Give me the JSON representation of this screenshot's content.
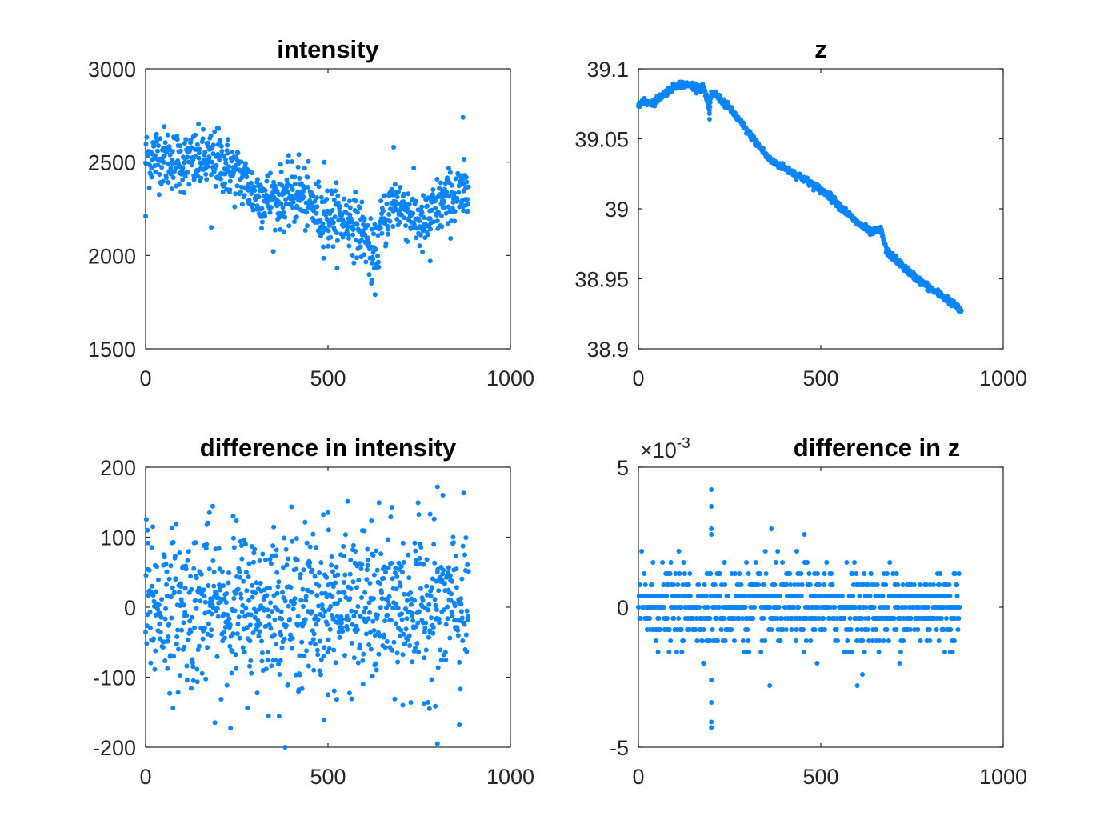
{
  "chart_data": [
    {
      "type": "scatter",
      "title": "intensity",
      "xlim": [
        0,
        1000
      ],
      "ylim": [
        1500,
        3000
      ],
      "xticks": [
        0,
        500,
        1000
      ],
      "yticks": [
        1500,
        2000,
        2500,
        3000
      ],
      "xtick_labels": [
        "0",
        "500",
        "1000"
      ],
      "ytick_labels": [
        "1500",
        "2000",
        "2500",
        "3000"
      ],
      "grid": false,
      "color": "#0a84ff",
      "x_range": [
        0,
        885
      ],
      "trend": [
        [
          0,
          2520
        ],
        [
          30,
          2540
        ],
        [
          100,
          2500
        ],
        [
          200,
          2510
        ],
        [
          260,
          2420
        ],
        [
          300,
          2330
        ],
        [
          350,
          2300
        ],
        [
          420,
          2330
        ],
        [
          480,
          2220
        ],
        [
          560,
          2190
        ],
        [
          600,
          2120
        ],
        [
          625,
          1960
        ],
        [
          650,
          2180
        ],
        [
          680,
          2290
        ],
        [
          720,
          2240
        ],
        [
          760,
          2150
        ],
        [
          800,
          2260
        ],
        [
          850,
          2320
        ],
        [
          885,
          2320
        ]
      ],
      "scatter_spread": 80,
      "outliers": [
        [
          0,
          2210
        ],
        [
          30,
          2650
        ],
        [
          180,
          2150
        ],
        [
          200,
          2680
        ],
        [
          420,
          2540
        ],
        [
          490,
          2500
        ],
        [
          500,
          2050
        ],
        [
          620,
          1870
        ],
        [
          680,
          2580
        ],
        [
          780,
          1970
        ],
        [
          870,
          2740
        ]
      ]
    },
    {
      "type": "scatter",
      "title": "z",
      "xlim": [
        0,
        1000
      ],
      "ylim": [
        38.9,
        39.1
      ],
      "xticks": [
        0,
        500,
        1000
      ],
      "yticks": [
        38.9,
        38.95,
        39,
        39.05,
        39.1
      ],
      "xtick_labels": [
        "0",
        "500",
        "1000"
      ],
      "ytick_labels": [
        "38.9",
        "38.95",
        "39",
        "39.05",
        "39.1"
      ],
      "grid": false,
      "color": "#0a84ff",
      "x_range": [
        0,
        885
      ],
      "trend": [
        [
          0,
          39.076
        ],
        [
          40,
          39.076
        ],
        [
          80,
          39.084
        ],
        [
          110,
          39.089
        ],
        [
          150,
          39.088
        ],
        [
          180,
          39.086
        ],
        [
          195,
          39.07
        ],
        [
          200,
          39.082
        ],
        [
          210,
          39.082
        ],
        [
          250,
          39.072
        ],
        [
          300,
          39.055
        ],
        [
          360,
          39.035
        ],
        [
          450,
          39.022
        ],
        [
          520,
          39.01
        ],
        [
          600,
          38.99
        ],
        [
          640,
          38.983
        ],
        [
          665,
          38.985
        ],
        [
          680,
          38.97
        ],
        [
          700,
          38.965
        ],
        [
          750,
          38.953
        ],
        [
          800,
          38.943
        ],
        [
          850,
          38.935
        ],
        [
          885,
          38.927
        ]
      ],
      "scatter_spread": 0.0012,
      "outliers": [
        [
          195,
          39.064
        ],
        [
          195,
          39.068
        ]
      ]
    },
    {
      "type": "scatter",
      "title": "difference in intensity",
      "xlim": [
        0,
        1000
      ],
      "ylim": [
        -200,
        200
      ],
      "xticks": [
        0,
        500,
        1000
      ],
      "yticks": [
        -200,
        -100,
        0,
        100,
        200
      ],
      "xtick_labels": [
        "0",
        "500",
        "1000"
      ],
      "ytick_labels": [
        "-200",
        "-100",
        "0",
        "100",
        "200"
      ],
      "grid": false,
      "color": "#0a84ff",
      "x_range": [
        0,
        885
      ],
      "trend": [
        [
          0,
          0
        ],
        [
          885,
          0
        ]
      ],
      "scatter_spread": 55,
      "outliers": [
        [
          5,
          110
        ],
        [
          20,
          115
        ],
        [
          175,
          135
        ],
        [
          240,
          130
        ],
        [
          500,
          135
        ],
        [
          705,
          -140
        ],
        [
          780,
          133
        ],
        [
          800,
          172
        ],
        [
          800,
          -195
        ],
        [
          860,
          -168
        ],
        [
          500,
          -125
        ]
      ]
    },
    {
      "type": "scatter",
      "title": "difference in z",
      "exponent_label": "×10",
      "exponent_power": "-3",
      "xlim": [
        0,
        1000
      ],
      "ylim": [
        -5,
        5
      ],
      "xticks": [
        0,
        500,
        1000
      ],
      "yticks": [
        -5,
        0,
        5
      ],
      "xtick_labels": [
        "0",
        "500",
        "1000"
      ],
      "ytick_labels": [
        "-5",
        "0",
        "5"
      ],
      "grid": false,
      "color": "#0a84ff",
      "x_range": [
        0,
        880
      ],
      "quantized_step": 0.4,
      "trend": [
        [
          0,
          0
        ],
        [
          880,
          0
        ]
      ],
      "scatter_spread": 0.7,
      "outliers": [
        [
          200,
          4.2
        ],
        [
          200,
          3.6
        ],
        [
          200,
          2.8
        ],
        [
          200,
          2.6
        ],
        [
          200,
          -2.6
        ],
        [
          200,
          -3.4
        ],
        [
          200,
          -4.1
        ],
        [
          200,
          -4.3
        ],
        [
          365,
          2.8
        ],
        [
          455,
          2.6
        ],
        [
          600,
          -2.8
        ],
        [
          360,
          -2.8
        ]
      ]
    }
  ]
}
